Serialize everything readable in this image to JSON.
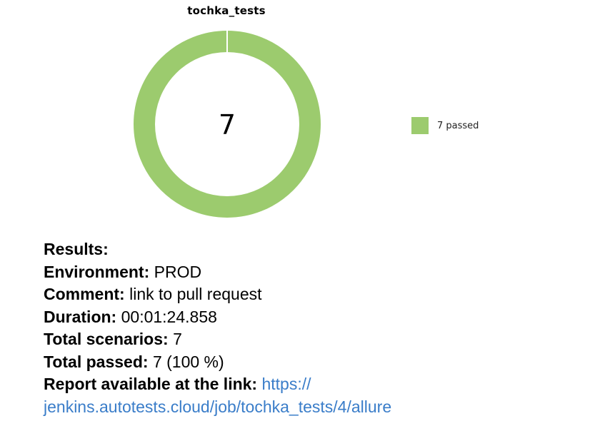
{
  "chart": {
    "title": "tochka_tests",
    "center_text": "7",
    "legend_label": "7 passed",
    "ring_color": "#9ccb6e"
  },
  "chart_data": {
    "type": "pie",
    "title": "tochka_tests",
    "series": [
      {
        "name": "passed",
        "values": [
          7
        ]
      }
    ],
    "categories": [
      "passed"
    ],
    "total": 7,
    "legend": [
      "7 passed"
    ],
    "legend_position": "right"
  },
  "results": {
    "heading": "Results:",
    "environment_label": "Environment:",
    "environment_value": "PROD",
    "comment_label": "Comment:",
    "comment_value": "link to pull request",
    "duration_label": "Duration:",
    "duration_value": "00:01:24.858",
    "scenarios_label": "Total scenarios:",
    "scenarios_value": "7",
    "passed_label": "Total passed:",
    "passed_value": "7 (100 %)",
    "report_label": "Report available at the link:",
    "report_link_part1": "https://",
    "report_link_part2": "jenkins.autotests.cloud/job/tochka_tests/4/allure"
  },
  "link_color": "#3a7dc9"
}
